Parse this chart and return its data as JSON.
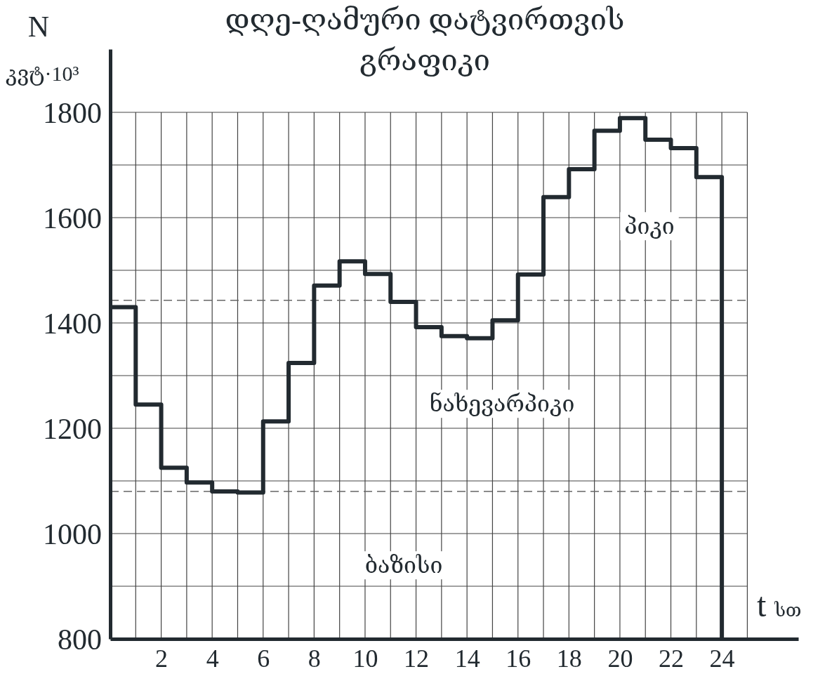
{
  "chart_data": {
    "type": "step",
    "title": "დღე-ღამური დატვირთვის გრაფიკი",
    "ylabel": "N კვტ·10³",
    "xlabel": "t სთ",
    "x": [
      0,
      1,
      2,
      3,
      4,
      5,
      6,
      7,
      8,
      9,
      10,
      11,
      12,
      13,
      14,
      15,
      16,
      17,
      18,
      19,
      20,
      21,
      22,
      23,
      24
    ],
    "series": [
      {
        "color": "#222a30",
        "values": [
          1430,
          1245,
          1125,
          1097,
          1080,
          1078,
          1213,
          1324,
          1471,
          1517,
          1493,
          1440,
          1392,
          1375,
          1371,
          1405,
          1492,
          1639,
          1692,
          1765,
          1789,
          1748,
          1732,
          1677,
          800
        ]
      }
    ],
    "xlim": [
      0,
      27
    ],
    "ylim": [
      800,
      1920
    ],
    "xticks": [
      {
        "value": 1,
        "label": null
      },
      2,
      {
        "value": 3,
        "label": null
      },
      4,
      {
        "value": 5,
        "label": null
      },
      6,
      {
        "value": 7,
        "label": null
      },
      8,
      {
        "value": 9,
        "label": null
      },
      10,
      {
        "value": 11,
        "label": null
      },
      12,
      {
        "value": 13,
        "label": null
      },
      14,
      {
        "value": 15,
        "label": null
      },
      16,
      {
        "value": 17,
        "label": null
      },
      18,
      {
        "value": 19,
        "label": null
      },
      20,
      {
        "value": 21,
        "label": null
      },
      22,
      {
        "value": 23,
        "label": null
      },
      24,
      {
        "value": 25,
        "label": null
      }
    ],
    "yticks": [
      800,
      {
        "value": 900,
        "label": null
      },
      1000,
      {
        "value": 1100,
        "label": null
      },
      1200,
      {
        "value": 1300,
        "label": null
      },
      1400,
      {
        "value": 1500,
        "label": null
      },
      1600,
      {
        "value": 1700,
        "label": null
      },
      1800
    ],
    "grid": true,
    "marker": "none",
    "line_style": "solid",
    "ref_lines": [
      {
        "axis": "y",
        "value": 1443,
        "color": "#666666",
        "line_style": "dashed"
      },
      {
        "axis": "y",
        "value": 1080,
        "color": "#666666",
        "line_style": "dashed"
      }
    ],
    "annotations": [
      "პიკი",
      "ნახევარპიკი",
      "ბაზისი"
    ]
  }
}
